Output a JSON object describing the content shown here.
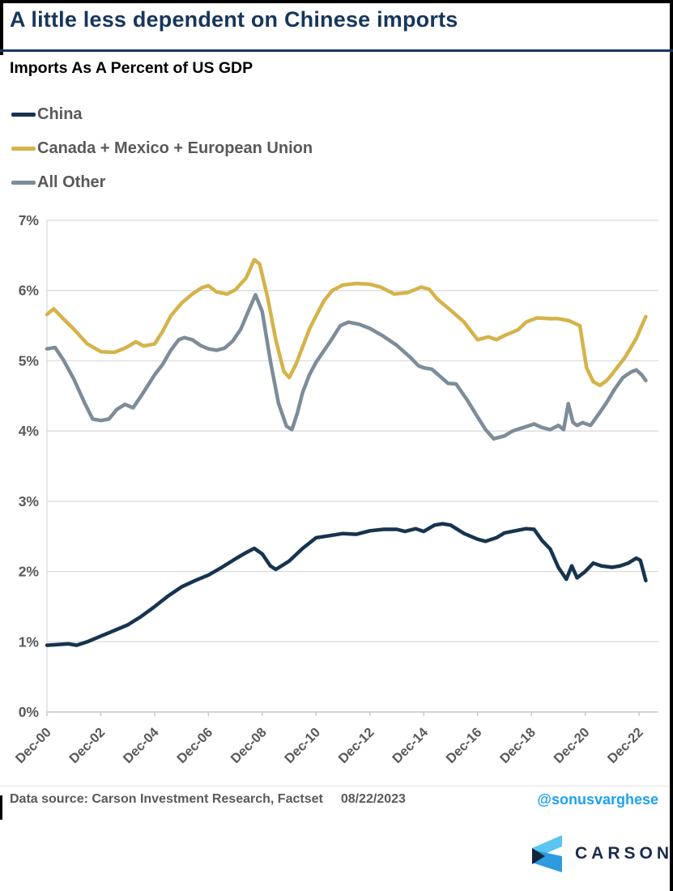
{
  "header": {
    "title": "A little less dependent on Chinese imports",
    "subtitle": "Imports As A Percent of US GDP"
  },
  "chart_data": {
    "type": "line",
    "title": "A little less dependent on Chinese imports",
    "subtitle": "Imports As A Percent of US GDP",
    "grid": "horizontal",
    "legend_position": "top-left",
    "x_axis": {
      "unit": "years since Dec-2000",
      "tick_positions": [
        0,
        2,
        4,
        6,
        8,
        10,
        12,
        14,
        16,
        18,
        20,
        22
      ],
      "tick_labels": [
        "Dec-00",
        "Dec-02",
        "Dec-04",
        "Dec-06",
        "Dec-08",
        "Dec-10",
        "Dec-12",
        "Dec-14",
        "Dec-16",
        "Dec-18",
        "Dec-20",
        "Dec-22"
      ],
      "range": [
        0,
        22.7
      ]
    },
    "y_axis": {
      "tick_values": [
        0,
        1,
        2,
        3,
        4,
        5,
        6,
        7
      ],
      "tick_labels": [
        "0%",
        "1%",
        "2%",
        "3%",
        "4%",
        "5%",
        "6%",
        "7%"
      ],
      "ylim": [
        0,
        7
      ]
    },
    "series": [
      {
        "name": "China",
        "color": "#17344F",
        "points": [
          [
            0,
            0.95
          ],
          [
            0.4,
            0.96
          ],
          [
            0.8,
            0.97
          ],
          [
            1.1,
            0.95
          ],
          [
            1.5,
            1.0
          ],
          [
            2,
            1.08
          ],
          [
            2.5,
            1.16
          ],
          [
            3,
            1.24
          ],
          [
            3.5,
            1.36
          ],
          [
            4,
            1.5
          ],
          [
            4.5,
            1.65
          ],
          [
            5,
            1.78
          ],
          [
            5.5,
            1.87
          ],
          [
            6,
            1.95
          ],
          [
            6.5,
            2.06
          ],
          [
            7,
            2.18
          ],
          [
            7.4,
            2.27
          ],
          [
            7.7,
            2.33
          ],
          [
            8,
            2.25
          ],
          [
            8.3,
            2.08
          ],
          [
            8.5,
            2.03
          ],
          [
            8.8,
            2.1
          ],
          [
            9,
            2.15
          ],
          [
            9.5,
            2.33
          ],
          [
            10,
            2.48
          ],
          [
            10.5,
            2.51
          ],
          [
            11,
            2.54
          ],
          [
            11.5,
            2.53
          ],
          [
            12,
            2.58
          ],
          [
            12.5,
            2.6
          ],
          [
            13,
            2.6
          ],
          [
            13.3,
            2.57
          ],
          [
            13.7,
            2.61
          ],
          [
            14,
            2.57
          ],
          [
            14.4,
            2.66
          ],
          [
            14.7,
            2.68
          ],
          [
            15,
            2.66
          ],
          [
            15.5,
            2.54
          ],
          [
            16,
            2.46
          ],
          [
            16.3,
            2.43
          ],
          [
            16.7,
            2.48
          ],
          [
            17,
            2.55
          ],
          [
            17.4,
            2.58
          ],
          [
            17.8,
            2.61
          ],
          [
            18.1,
            2.6
          ],
          [
            18.4,
            2.44
          ],
          [
            18.7,
            2.32
          ],
          [
            19,
            2.06
          ],
          [
            19.3,
            1.89
          ],
          [
            19.5,
            2.08
          ],
          [
            19.7,
            1.91
          ],
          [
            20,
            2.0
          ],
          [
            20.3,
            2.12
          ],
          [
            20.6,
            2.08
          ],
          [
            21,
            2.06
          ],
          [
            21.3,
            2.08
          ],
          [
            21.6,
            2.12
          ],
          [
            21.9,
            2.19
          ],
          [
            22.05,
            2.16
          ],
          [
            22.25,
            1.87
          ]
        ]
      },
      {
        "name": "Canada + Mexico + European Union",
        "color": "#D5B34A",
        "points": [
          [
            0,
            5.66
          ],
          [
            0.25,
            5.74
          ],
          [
            0.6,
            5.6
          ],
          [
            1,
            5.45
          ],
          [
            1.5,
            5.24
          ],
          [
            2,
            5.13
          ],
          [
            2.5,
            5.12
          ],
          [
            2.9,
            5.18
          ],
          [
            3.3,
            5.27
          ],
          [
            3.6,
            5.21
          ],
          [
            4,
            5.24
          ],
          [
            4.3,
            5.42
          ],
          [
            4.6,
            5.64
          ],
          [
            5,
            5.82
          ],
          [
            5.4,
            5.95
          ],
          [
            5.75,
            6.04
          ],
          [
            6,
            6.07
          ],
          [
            6.3,
            5.98
          ],
          [
            6.7,
            5.95
          ],
          [
            7,
            6.01
          ],
          [
            7.4,
            6.18
          ],
          [
            7.7,
            6.44
          ],
          [
            7.9,
            6.38
          ],
          [
            8.2,
            5.9
          ],
          [
            8.5,
            5.3
          ],
          [
            8.8,
            4.85
          ],
          [
            9,
            4.76
          ],
          [
            9.25,
            4.95
          ],
          [
            9.5,
            5.2
          ],
          [
            9.75,
            5.45
          ],
          [
            10,
            5.64
          ],
          [
            10.3,
            5.86
          ],
          [
            10.6,
            6.0
          ],
          [
            11,
            6.08
          ],
          [
            11.5,
            6.1
          ],
          [
            12,
            6.09
          ],
          [
            12.4,
            6.05
          ],
          [
            12.9,
            5.95
          ],
          [
            13.4,
            5.97
          ],
          [
            13.9,
            6.05
          ],
          [
            14.2,
            6.02
          ],
          [
            14.5,
            5.88
          ],
          [
            15,
            5.72
          ],
          [
            15.5,
            5.55
          ],
          [
            16,
            5.3
          ],
          [
            16.4,
            5.34
          ],
          [
            16.7,
            5.3
          ],
          [
            17,
            5.36
          ],
          [
            17.5,
            5.44
          ],
          [
            17.8,
            5.55
          ],
          [
            18.2,
            5.61
          ],
          [
            18.7,
            5.6
          ],
          [
            19,
            5.6
          ],
          [
            19.4,
            5.57
          ],
          [
            19.8,
            5.5
          ],
          [
            20.05,
            4.9
          ],
          [
            20.3,
            4.7
          ],
          [
            20.55,
            4.65
          ],
          [
            20.8,
            4.72
          ],
          [
            21,
            4.81
          ],
          [
            21.5,
            5.06
          ],
          [
            21.9,
            5.32
          ],
          [
            22.1,
            5.5
          ],
          [
            22.25,
            5.63
          ]
        ]
      },
      {
        "name": "All Other",
        "color": "#7D8C98",
        "points": [
          [
            0,
            5.17
          ],
          [
            0.3,
            5.19
          ],
          [
            0.6,
            5.02
          ],
          [
            1,
            4.74
          ],
          [
            1.4,
            4.4
          ],
          [
            1.7,
            4.17
          ],
          [
            2,
            4.15
          ],
          [
            2.3,
            4.17
          ],
          [
            2.6,
            4.31
          ],
          [
            2.9,
            4.38
          ],
          [
            3.2,
            4.33
          ],
          [
            3.5,
            4.5
          ],
          [
            3.7,
            4.62
          ],
          [
            4,
            4.8
          ],
          [
            4.3,
            4.95
          ],
          [
            4.6,
            5.15
          ],
          [
            4.9,
            5.3
          ],
          [
            5.1,
            5.33
          ],
          [
            5.4,
            5.3
          ],
          [
            5.7,
            5.22
          ],
          [
            6,
            5.17
          ],
          [
            6.3,
            5.15
          ],
          [
            6.6,
            5.18
          ],
          [
            6.9,
            5.28
          ],
          [
            7.2,
            5.45
          ],
          [
            7.5,
            5.72
          ],
          [
            7.75,
            5.94
          ],
          [
            8,
            5.7
          ],
          [
            8.3,
            5.0
          ],
          [
            8.6,
            4.4
          ],
          [
            8.9,
            4.07
          ],
          [
            9.1,
            4.02
          ],
          [
            9.3,
            4.25
          ],
          [
            9.5,
            4.55
          ],
          [
            9.75,
            4.8
          ],
          [
            10,
            4.98
          ],
          [
            10.5,
            5.26
          ],
          [
            10.9,
            5.5
          ],
          [
            11.2,
            5.55
          ],
          [
            11.6,
            5.52
          ],
          [
            12,
            5.46
          ],
          [
            12.5,
            5.35
          ],
          [
            13,
            5.22
          ],
          [
            13.5,
            5.05
          ],
          [
            13.8,
            4.93
          ],
          [
            14,
            4.9
          ],
          [
            14.3,
            4.88
          ],
          [
            14.6,
            4.78
          ],
          [
            14.9,
            4.68
          ],
          [
            15.2,
            4.67
          ],
          [
            15.6,
            4.45
          ],
          [
            16,
            4.2
          ],
          [
            16.3,
            4.02
          ],
          [
            16.6,
            3.89
          ],
          [
            17,
            3.93
          ],
          [
            17.3,
            4.0
          ],
          [
            17.7,
            4.05
          ],
          [
            18.1,
            4.1
          ],
          [
            18.4,
            4.05
          ],
          [
            18.7,
            4.02
          ],
          [
            19,
            4.08
          ],
          [
            19.2,
            4.02
          ],
          [
            19.37,
            4.39
          ],
          [
            19.55,
            4.12
          ],
          [
            19.7,
            4.08
          ],
          [
            19.9,
            4.12
          ],
          [
            20.2,
            4.08
          ],
          [
            20.5,
            4.24
          ],
          [
            20.8,
            4.41
          ],
          [
            21.1,
            4.6
          ],
          [
            21.4,
            4.76
          ],
          [
            21.7,
            4.84
          ],
          [
            21.9,
            4.87
          ],
          [
            22.1,
            4.8
          ],
          [
            22.25,
            4.72
          ]
        ]
      }
    ]
  },
  "footer": {
    "source": "Data source: Carson Investment Research, Factset",
    "date": "08/22/2023",
    "handle": "@sonusvarghese",
    "logo_text": "CARSON"
  },
  "colors": {
    "title": "#17365D",
    "legend_text": "#595959",
    "axis_text": "#595959",
    "gridline": "#D9D9D9",
    "axis_line": "#C6C6C6",
    "handle_blue": "#1DA1F2",
    "logo_light_blue": "#5BC5F2",
    "logo_blue": "#2E9BE0",
    "logo_dark": "#14253E",
    "logo_wordmark": "#1B2B4A"
  }
}
